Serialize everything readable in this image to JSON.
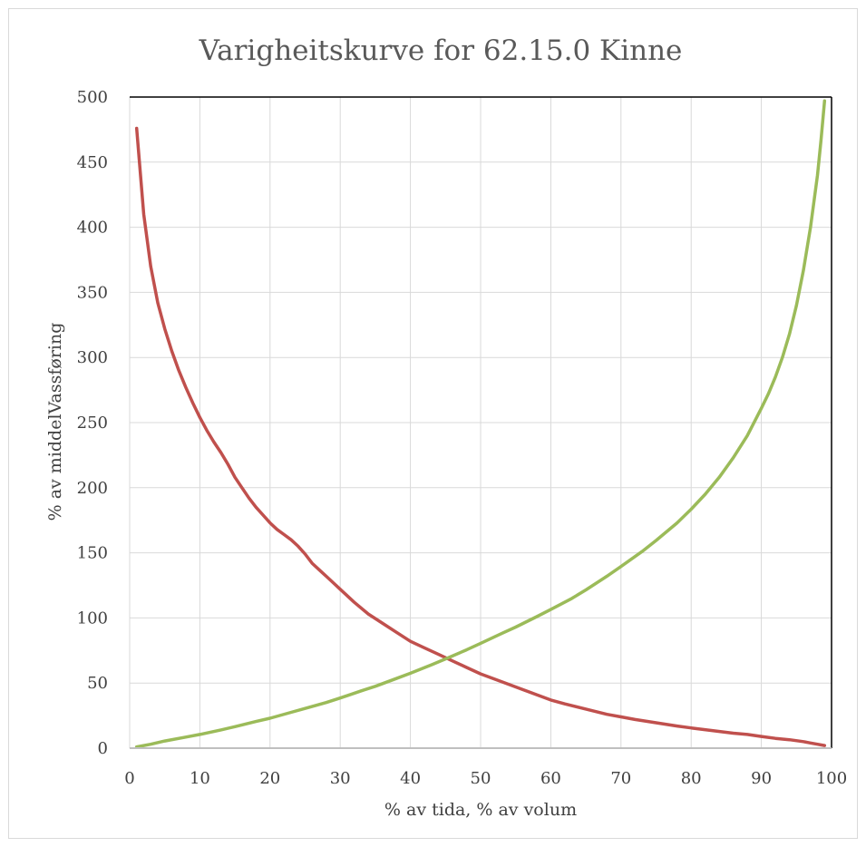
{
  "chart_data": {
    "type": "line",
    "title": "Varigheitskurve for 62.15.0 Kinne",
    "xlabel": "% av tida, % av volum",
    "ylabel": "% av middelVassføring",
    "xlim": [
      0,
      100
    ],
    "ylim": [
      0,
      500
    ],
    "x_ticks": [
      "0",
      "10",
      "20",
      "30",
      "40",
      "50",
      "60",
      "70",
      "80",
      "90",
      "100"
    ],
    "y_ticks": [
      "0",
      "50",
      "100",
      "150",
      "200",
      "250",
      "300",
      "350",
      "400",
      "450",
      "500"
    ],
    "grid": true,
    "legend": "none",
    "series": [
      {
        "color": "#c0504d",
        "points": [
          [
            1,
            476
          ],
          [
            2,
            410
          ],
          [
            3,
            370
          ],
          [
            4,
            342
          ],
          [
            5,
            322
          ],
          [
            6,
            305
          ],
          [
            7,
            290
          ],
          [
            8,
            277
          ],
          [
            9,
            265
          ],
          [
            10,
            254
          ],
          [
            11,
            244
          ],
          [
            12,
            235
          ],
          [
            13,
            227
          ],
          [
            14,
            218
          ],
          [
            15,
            208
          ],
          [
            16,
            200
          ],
          [
            17,
            192
          ],
          [
            18,
            185
          ],
          [
            19,
            179
          ],
          [
            20,
            173
          ],
          [
            21,
            168
          ],
          [
            22,
            164
          ],
          [
            23,
            160
          ],
          [
            24,
            155
          ],
          [
            25,
            149
          ],
          [
            26,
            142
          ],
          [
            27,
            137
          ],
          [
            28,
            132
          ],
          [
            29,
            127
          ],
          [
            30,
            122
          ],
          [
            32,
            112
          ],
          [
            34,
            103
          ],
          [
            36,
            96
          ],
          [
            38,
            89
          ],
          [
            40,
            82
          ],
          [
            42,
            77
          ],
          [
            44,
            72
          ],
          [
            46,
            67
          ],
          [
            48,
            62
          ],
          [
            50,
            57
          ],
          [
            52,
            53
          ],
          [
            54,
            49
          ],
          [
            56,
            45
          ],
          [
            58,
            41
          ],
          [
            60,
            37
          ],
          [
            62,
            34
          ],
          [
            65,
            30
          ],
          [
            68,
            26
          ],
          [
            70,
            24
          ],
          [
            72,
            22
          ],
          [
            75,
            19.5
          ],
          [
            78,
            17
          ],
          [
            80,
            15.5
          ],
          [
            83,
            13.5
          ],
          [
            86,
            11.5
          ],
          [
            88,
            10.5
          ],
          [
            90,
            9
          ],
          [
            92,
            7.5
          ],
          [
            94,
            6.5
          ],
          [
            96,
            5
          ],
          [
            97,
            4
          ],
          [
            98,
            3
          ],
          [
            99,
            2
          ]
        ]
      },
      {
        "color": "#9bbb59",
        "points": [
          [
            1,
            1
          ],
          [
            3,
            3
          ],
          [
            5,
            5.5
          ],
          [
            8,
            8.5
          ],
          [
            10,
            10.5
          ],
          [
            13,
            14
          ],
          [
            15,
            16.5
          ],
          [
            18,
            20.5
          ],
          [
            20,
            23
          ],
          [
            23,
            27.5
          ],
          [
            25,
            30.5
          ],
          [
            28,
            35
          ],
          [
            30,
            38.5
          ],
          [
            33,
            44
          ],
          [
            35,
            47.5
          ],
          [
            38,
            53.5
          ],
          [
            40,
            57.5
          ],
          [
            43,
            64
          ],
          [
            45,
            68.5
          ],
          [
            48,
            75.5
          ],
          [
            50,
            80.5
          ],
          [
            53,
            88
          ],
          [
            55,
            93
          ],
          [
            58,
            101
          ],
          [
            60,
            106.5
          ],
          [
            63,
            115
          ],
          [
            65,
            121.5
          ],
          [
            68,
            132
          ],
          [
            70,
            139.5
          ],
          [
            73,
            151
          ],
          [
            75,
            159.5
          ],
          [
            78,
            173
          ],
          [
            80,
            183.5
          ],
          [
            82,
            195
          ],
          [
            84,
            208
          ],
          [
            86,
            223
          ],
          [
            88,
            240
          ],
          [
            90,
            261
          ],
          [
            91,
            272
          ],
          [
            92,
            285
          ],
          [
            93,
            300
          ],
          [
            94,
            318
          ],
          [
            95,
            340
          ],
          [
            96,
            367
          ],
          [
            97,
            400
          ],
          [
            98,
            440
          ],
          [
            98.5,
            467
          ],
          [
            99,
            497
          ]
        ]
      }
    ]
  }
}
